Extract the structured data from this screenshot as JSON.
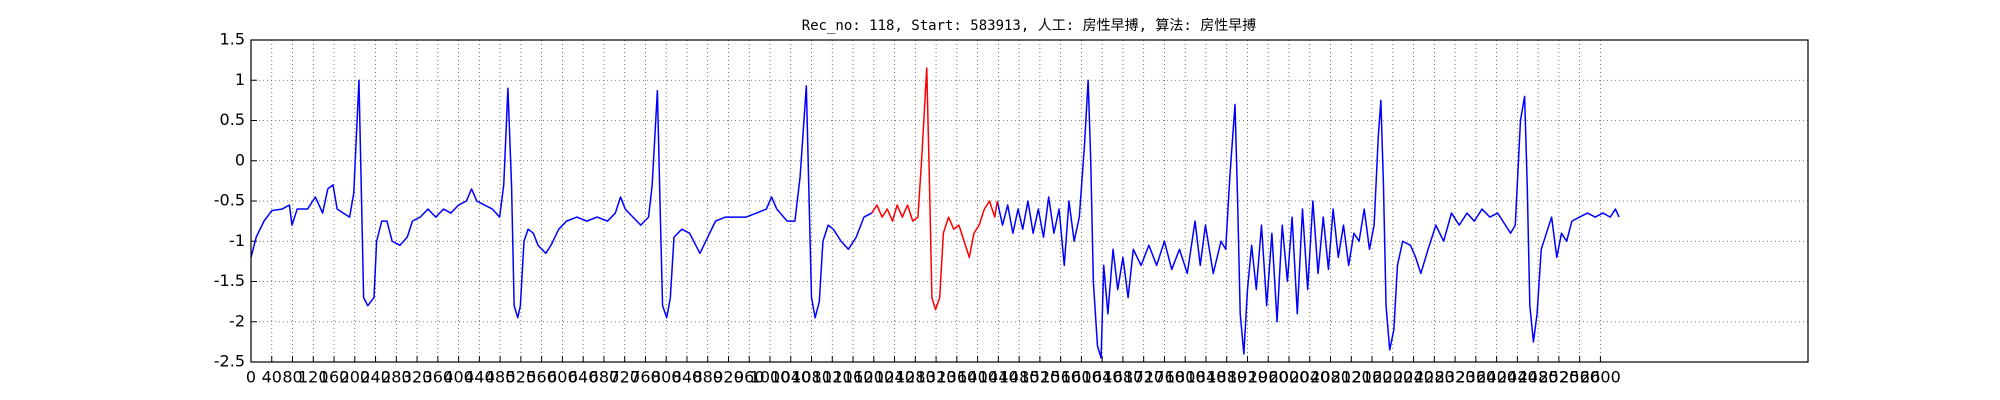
{
  "chart_data": {
    "type": "line",
    "title": "Rec_no: 118, Start: 583913, 人工: 房性早搏, 算法: 房性早搏",
    "xlim": [
      0,
      3000
    ],
    "ylim": [
      -2.5,
      1.5
    ],
    "yticks": [
      -2.5,
      -2.0,
      -1.5,
      -1.0,
      -0.5,
      0.0,
      0.5,
      1.0,
      1.5
    ],
    "xticks": [
      0,
      40,
      80,
      120,
      160,
      200,
      240,
      280,
      320,
      360,
      400,
      440,
      480,
      520,
      560,
      600,
      640,
      680,
      720,
      760,
      800,
      840,
      880,
      920,
      960,
      1000,
      1040,
      1080,
      1120,
      1160,
      1200,
      1240,
      1280,
      1320,
      1360,
      1400,
      1440,
      1480,
      1520,
      1560,
      1600,
      1640,
      1680,
      1720,
      1760,
      1800,
      1840,
      1880,
      1920,
      1960,
      2000,
      2040,
      2080,
      2120,
      2160,
      2200,
      2240,
      2280,
      2320,
      2360,
      2400,
      2440,
      2480,
      2520,
      2560,
      2600
    ],
    "grid": true,
    "series": [
      {
        "color": "#0000ff",
        "x": [
          0,
          10,
          25,
          40,
          60,
          74,
          79,
          89,
          109,
          124,
          138,
          148,
          158,
          166,
          178,
          190,
          198,
          208,
          213,
          217,
          225,
          237,
          242,
          252,
          262,
          272,
          287,
          301,
          311,
          326,
          341,
          356,
          371,
          385,
          400,
          415,
          425,
          435,
          450,
          465,
          479,
          487,
          495,
          502,
          507,
          514,
          519,
          526,
          534,
          544,
          553,
          568,
          578,
          593,
          608,
          628,
          647,
          667,
          687,
          702,
          712,
          721,
          736,
          751,
          766,
          773,
          783,
          788,
          793,
          801,
          808,
          815,
          830,
          845,
          865,
          880,
          895,
          914,
          934,
          954,
          974,
          993,
          1003,
          1013,
          1033,
          1048,
          1058,
          1070,
          1075,
          1080,
          1087,
          1095,
          1102,
          1112,
          1122,
          1137,
          1151,
          1166,
          1181,
          1196,
          null,
          1438,
          1448,
          1458,
          1468,
          1478,
          1487,
          1497,
          1507,
          1517,
          1527,
          1537,
          1547,
          1557,
          1567,
          1576,
          1586,
          1596,
          1606,
          1613,
          1618,
          1623,
          1631,
          1638,
          1643,
          1651,
          1661,
          1670,
          1680,
          1690,
          1700,
          1715,
          1730,
          1745,
          1760,
          1774,
          1789,
          1804,
          1819,
          1829,
          1839,
          1854,
          1869,
          1878,
          1886,
          1896,
          1901,
          1906,
          1913,
          1920,
          1928,
          1937,
          1947,
          1957,
          1967,
          1977,
          1987,
          1997,
          2006,
          2016,
          2026,
          2036,
          2046,
          2056,
          2066,
          2076,
          2085,
          2095,
          2105,
          2115,
          2125,
          2135,
          2145,
          2155,
          2164,
          2172,
          2177,
          2182,
          2187,
          2194,
          2202,
          2209,
          2219,
          2234,
          2244,
          2254,
          2268,
          2283,
          2298,
          2313,
          2328,
          2343,
          2357,
          2372,
          2387,
          2402,
          2417,
          2427,
          2436,
          2446,
          2454,
          2459,
          2464,
          2471,
          2478,
          2486,
          2496,
          2506,
          2516,
          2525,
          2535,
          2545,
          2560,
          2575,
          2590,
          2605,
          2619,
          2629,
          2636
        ],
        "values": [
          -1.2,
          -0.95,
          -0.75,
          -0.62,
          -0.6,
          -0.55,
          -0.8,
          -0.6,
          -0.6,
          -0.45,
          -0.65,
          -0.35,
          -0.3,
          -0.6,
          -0.65,
          -0.7,
          -0.4,
          1.0,
          -0.5,
          -1.7,
          -1.8,
          -1.7,
          -1.0,
          -0.75,
          -0.75,
          -1.0,
          -1.05,
          -0.95,
          -0.75,
          -0.7,
          -0.6,
          -0.7,
          -0.6,
          -0.65,
          -0.55,
          -0.5,
          -0.35,
          -0.5,
          -0.55,
          -0.6,
          -0.7,
          -0.3,
          0.9,
          -0.3,
          -1.8,
          -1.95,
          -1.8,
          -1.0,
          -0.85,
          -0.9,
          -1.05,
          -1.15,
          -1.05,
          -0.85,
          -0.75,
          -0.7,
          -0.75,
          -0.7,
          -0.75,
          -0.65,
          -0.45,
          -0.6,
          -0.7,
          -0.8,
          -0.7,
          -0.3,
          0.87,
          -0.5,
          -1.8,
          -1.95,
          -1.7,
          -0.95,
          -0.85,
          -0.9,
          -1.15,
          -0.95,
          -0.75,
          -0.7,
          -0.7,
          -0.7,
          -0.65,
          -0.6,
          -0.45,
          -0.6,
          -0.75,
          -0.75,
          -0.2,
          0.93,
          -0.4,
          -1.7,
          -1.95,
          -1.75,
          -1.0,
          -0.8,
          -0.85,
          -1.0,
          -1.1,
          -0.95,
          -0.7,
          -0.65,
          null,
          -0.5,
          -0.8,
          -0.55,
          -0.9,
          -0.6,
          -0.85,
          -0.5,
          -0.9,
          -0.6,
          -0.95,
          -0.45,
          -0.9,
          -0.6,
          -1.3,
          -0.5,
          -1.0,
          -0.7,
          0.2,
          1.0,
          0.0,
          -1.5,
          -2.3,
          -2.45,
          -1.3,
          -1.9,
          -1.1,
          -1.6,
          -1.2,
          -1.7,
          -1.1,
          -1.3,
          -1.05,
          -1.3,
          -1.0,
          -1.35,
          -1.1,
          -1.4,
          -0.75,
          -1.3,
          -0.8,
          -1.4,
          -1.0,
          -1.1,
          -0.2,
          0.7,
          -0.5,
          -1.9,
          -2.4,
          -1.6,
          -1.05,
          -1.6,
          -0.8,
          -1.8,
          -0.9,
          -2.0,
          -0.8,
          -1.5,
          -0.7,
          -1.9,
          -0.6,
          -1.6,
          -0.5,
          -1.4,
          -0.7,
          -1.35,
          -0.6,
          -1.2,
          -0.8,
          -1.3,
          -0.9,
          -1.0,
          -0.6,
          -1.1,
          -0.8,
          0.3,
          0.75,
          -0.3,
          -1.8,
          -2.35,
          -2.1,
          -1.3,
          -1.0,
          -1.05,
          -1.2,
          -1.4,
          -1.1,
          -0.8,
          -1.0,
          -0.65,
          -0.8,
          -0.65,
          -0.75,
          -0.6,
          -0.7,
          -0.65,
          -0.8,
          -0.9,
          -0.8,
          0.5,
          0.8,
          -0.3,
          -1.8,
          -2.25,
          -1.9,
          -1.1,
          -0.9,
          -0.7,
          -1.2,
          -0.9,
          -1.0,
          -0.75,
          -0.7,
          -0.65,
          -0.7,
          -0.65,
          -0.7,
          -0.6,
          -0.7
        ]
      },
      {
        "color": "#ff0000",
        "x": [
          1196,
          1206,
          1216,
          1226,
          1236,
          1245,
          1255,
          1265,
          1275,
          1285,
          1292,
          1302,
          1307,
          1312,
          1319,
          1327,
          1334,
          1344,
          1354,
          1364,
          1374,
          1384,
          1393,
          1403,
          1413,
          1423,
          1433,
          1438
        ],
        "values": [
          -0.65,
          -0.55,
          -0.7,
          -0.6,
          -0.75,
          -0.55,
          -0.7,
          -0.55,
          -0.75,
          -0.7,
          0.0,
          1.15,
          -0.2,
          -1.7,
          -1.85,
          -1.7,
          -0.9,
          -0.7,
          -0.85,
          -0.8,
          -1.0,
          -1.2,
          -0.9,
          -0.8,
          -0.6,
          -0.5,
          -0.7,
          -0.5
        ]
      }
    ]
  }
}
